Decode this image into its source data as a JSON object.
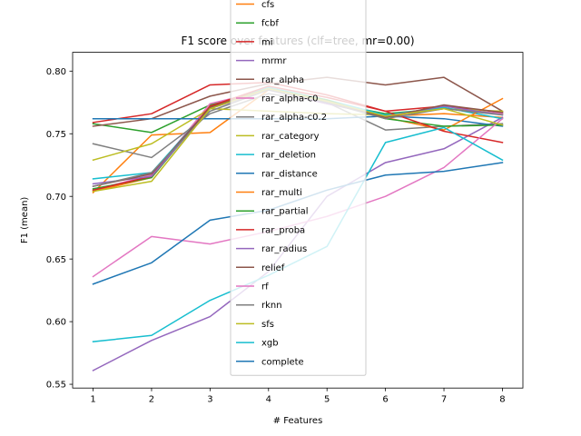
{
  "chart_data": {
    "type": "line",
    "title": "F1 score over features (clf=tree, mr=0.00)",
    "xlabel": "# Features",
    "ylabel": "F1 (mean)",
    "x": [
      1,
      2,
      3,
      4,
      5,
      6,
      7,
      8
    ],
    "xlim": [
      0.65,
      8.35
    ],
    "ylim": [
      0.547,
      0.815
    ],
    "xticks": [
      1,
      2,
      3,
      4,
      5,
      6,
      7,
      8
    ],
    "yticks": [
      0.55,
      0.6,
      0.65,
      0.7,
      0.75,
      0.8
    ],
    "ytick_labels": [
      "0.55",
      "0.60",
      "0.65",
      "0.70",
      "0.75",
      "0.80"
    ],
    "grid": false,
    "legend_position": "upper center, overlapping plot",
    "series": [
      {
        "name": "cfs",
        "color": "#ff7f0e",
        "values": [
          0.703,
          0.749,
          0.751,
          0.785,
          0.774,
          0.764,
          0.766,
          0.763
        ]
      },
      {
        "name": "fcbf",
        "color": "#2ca02c",
        "values": [
          0.758,
          0.751,
          0.773,
          0.785,
          0.775,
          0.766,
          0.77,
          0.766
        ]
      },
      {
        "name": "mi",
        "color": "#d62728",
        "values": [
          0.759,
          0.766,
          0.789,
          0.791,
          0.781,
          0.768,
          0.772,
          0.767
        ]
      },
      {
        "name": "mrmr",
        "color": "#9467bd",
        "values": [
          0.561,
          0.585,
          0.604,
          0.64,
          0.7,
          0.727,
          0.738,
          0.763
        ]
      },
      {
        "name": "rar_alpha",
        "color": "#8c564b",
        "values": [
          0.756,
          0.762,
          0.78,
          0.79,
          0.795,
          0.789,
          0.795,
          0.768
        ]
      },
      {
        "name": "rar_alpha-c0",
        "color": "#e377c2",
        "values": [
          0.705,
          0.717,
          0.774,
          0.785,
          0.774,
          0.764,
          0.77,
          0.766
        ]
      },
      {
        "name": "rar_alpha-c0.2",
        "color": "#7f7f7f",
        "values": [
          0.742,
          0.731,
          0.766,
          0.782,
          0.775,
          0.753,
          0.756,
          0.758
        ]
      },
      {
        "name": "rar_category",
        "color": "#bcbd22",
        "values": [
          0.729,
          0.742,
          0.77,
          0.768,
          0.766,
          0.765,
          0.77,
          0.768
        ]
      },
      {
        "name": "rar_deletion",
        "color": "#17becf",
        "values": [
          0.714,
          0.719,
          0.771,
          0.787,
          0.777,
          0.765,
          0.771,
          0.762
        ]
      },
      {
        "name": "rar_distance",
        "color": "#1f77b4",
        "values": [
          0.762,
          0.762,
          0.762,
          0.762,
          0.762,
          0.764,
          0.762,
          0.756
        ]
      },
      {
        "name": "rar_multi",
        "color": "#ff7f0e",
        "values": [
          0.704,
          0.715,
          0.772,
          0.786,
          0.776,
          0.763,
          0.753,
          0.778
        ]
      },
      {
        "name": "rar_partial",
        "color": "#2ca02c",
        "values": [
          0.706,
          0.715,
          0.771,
          0.786,
          0.777,
          0.762,
          0.756,
          0.757
        ]
      },
      {
        "name": "rar_proba",
        "color": "#d62728",
        "values": [
          0.705,
          0.716,
          0.772,
          0.788,
          0.779,
          0.768,
          0.752,
          0.743
        ]
      },
      {
        "name": "rar_radius",
        "color": "#9467bd",
        "values": [
          0.71,
          0.716,
          0.77,
          0.785,
          0.774,
          0.764,
          0.772,
          0.765
        ]
      },
      {
        "name": "relief",
        "color": "#8c564b",
        "values": [
          0.708,
          0.718,
          0.771,
          0.786,
          0.776,
          0.763,
          0.773,
          0.767
        ]
      },
      {
        "name": "rf",
        "color": "#e377c2",
        "values": [
          0.636,
          0.668,
          0.662,
          0.672,
          0.684,
          0.7,
          0.723,
          0.762
        ]
      },
      {
        "name": "rknn",
        "color": "#7f7f7f",
        "values": [
          0.708,
          0.719,
          0.768,
          0.785,
          0.775,
          0.762,
          0.77,
          0.765
        ]
      },
      {
        "name": "sfs",
        "color": "#bcbd22",
        "values": [
          0.704,
          0.712,
          0.77,
          0.786,
          0.776,
          0.764,
          0.77,
          0.757
        ]
      },
      {
        "name": "xgb",
        "color": "#17becf",
        "values": [
          0.584,
          0.589,
          0.617,
          0.637,
          0.66,
          0.743,
          0.755,
          0.729
        ]
      },
      {
        "name": "complete",
        "color": "#1f77b4",
        "values": [
          0.63,
          0.647,
          0.681,
          0.689,
          0.705,
          0.717,
          0.72,
          0.727
        ]
      }
    ]
  }
}
